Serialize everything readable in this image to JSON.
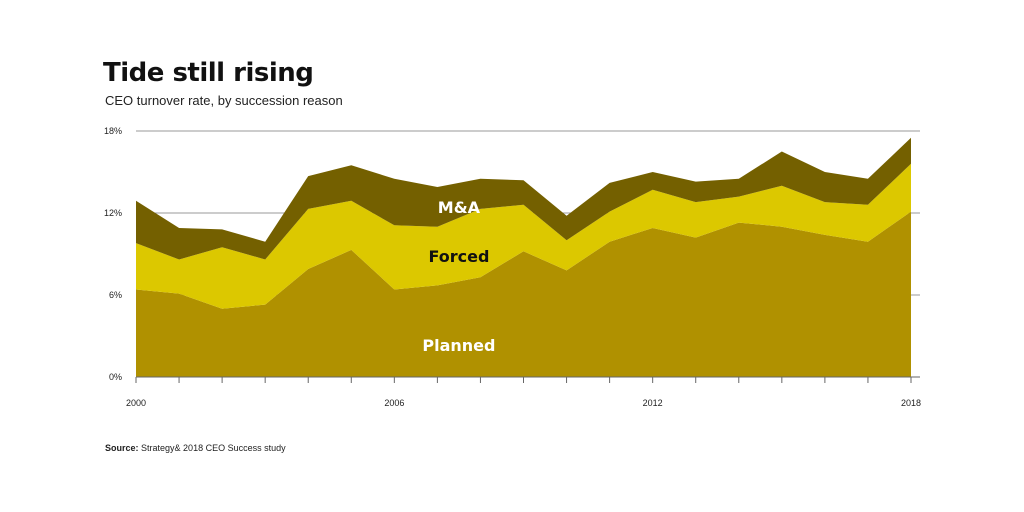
{
  "header": {
    "title": "Tide still rising",
    "subtitle": "CEO turnover rate, by succession reason"
  },
  "source": {
    "label": "Source:",
    "text": "Strategy& 2018 CEO Success study"
  },
  "colors": {
    "planned": "#b09100",
    "forced": "#dcc800",
    "ma": "#746000",
    "grid": "#999999",
    "axis": "#666666",
    "label_light": "#ffffff",
    "label_dark": "#111111"
  },
  "chart_data": {
    "type": "area",
    "stacked": true,
    "x": [
      2000,
      2001,
      2002,
      2003,
      2004,
      2005,
      2006,
      2007,
      2008,
      2009,
      2010,
      2011,
      2012,
      2013,
      2014,
      2015,
      2016,
      2017,
      2018
    ],
    "series": [
      {
        "name": "Planned",
        "values": [
          6.4,
          6.1,
          5.0,
          5.3,
          7.9,
          9.3,
          6.4,
          6.7,
          7.3,
          9.2,
          7.8,
          9.9,
          10.9,
          10.2,
          11.3,
          11.0,
          10.4,
          9.9,
          12.1
        ]
      },
      {
        "name": "Forced",
        "values": [
          3.4,
          2.5,
          4.5,
          3.3,
          4.4,
          3.6,
          4.7,
          4.3,
          5.0,
          3.4,
          2.2,
          2.2,
          2.8,
          2.6,
          1.9,
          3.0,
          2.4,
          2.7,
          3.5
        ]
      },
      {
        "name": "M&A",
        "values": [
          3.1,
          2.3,
          1.3,
          1.3,
          2.4,
          2.6,
          3.4,
          2.9,
          2.2,
          1.8,
          1.8,
          2.1,
          1.3,
          1.5,
          1.3,
          2.5,
          2.2,
          1.9,
          1.9
        ]
      }
    ],
    "y_tick_labels": [
      "0%",
      "6%",
      "12%",
      "18%"
    ],
    "y_tick_values": [
      0,
      6,
      12,
      18
    ],
    "x_tick_labels": [
      "2000",
      "2006",
      "2012",
      "2018"
    ],
    "x_tick_values": [
      2000,
      2006,
      2012,
      2018
    ],
    "ylim": [
      0,
      18
    ],
    "xlim": [
      2000,
      2018
    ],
    "grid": true,
    "legend": "inline labels"
  }
}
